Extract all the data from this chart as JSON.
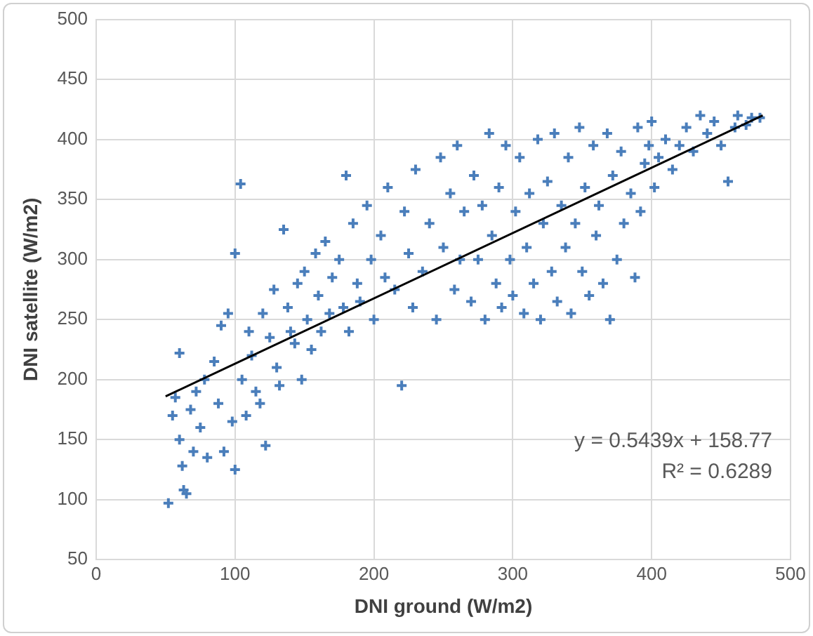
{
  "chart_data": {
    "type": "scatter",
    "xlabel": "DNI ground (W/m2)",
    "ylabel": "DNI satellite (W/m2)",
    "xlim": [
      0,
      500
    ],
    "xticks": [
      0,
      100,
      200,
      300,
      400,
      500
    ],
    "ylim": [
      50,
      500
    ],
    "yticks": [
      50,
      100,
      150,
      200,
      250,
      300,
      350,
      400,
      450,
      500
    ],
    "grid": true,
    "marker": "cross",
    "annotations": [
      "y = 0.5439x + 158.77",
      "R² = 0.6289"
    ],
    "series": [
      {
        "color": "#4a7ebb",
        "x": [
          52,
          55,
          57,
          60,
          62,
          63,
          65,
          60,
          68,
          70,
          72,
          75,
          78,
          80,
          85,
          88,
          90,
          92,
          95,
          98,
          100,
          100,
          104,
          105,
          108,
          110,
          112,
          115,
          118,
          120,
          122,
          125,
          128,
          130,
          132,
          135,
          138,
          140,
          143,
          145,
          148,
          150,
          152,
          155,
          158,
          160,
          162,
          165,
          168,
          170,
          175,
          178,
          180,
          182,
          185,
          188,
          190,
          195,
          198,
          200,
          205,
          208,
          210,
          215,
          220,
          222,
          225,
          228,
          230,
          235,
          240,
          245,
          248,
          250,
          255,
          258,
          260,
          262,
          265,
          270,
          272,
          275,
          278,
          280,
          283,
          285,
          288,
          290,
          292,
          295,
          298,
          300,
          302,
          305,
          308,
          310,
          312,
          315,
          318,
          320,
          322,
          325,
          328,
          330,
          332,
          335,
          338,
          340,
          342,
          345,
          348,
          350,
          352,
          355,
          358,
          360,
          362,
          365,
          368,
          370,
          372,
          375,
          378,
          380,
          385,
          388,
          390,
          392,
          395,
          398,
          400,
          402,
          405,
          410,
          415,
          420,
          425,
          430,
          435,
          440,
          445,
          450,
          455,
          460,
          462,
          468,
          472,
          478
        ],
        "values": [
          97,
          170,
          185,
          150,
          128,
          108,
          105,
          222,
          175,
          140,
          190,
          160,
          200,
          135,
          215,
          180,
          245,
          140,
          255,
          165,
          305,
          125,
          363,
          200,
          170,
          240,
          220,
          190,
          180,
          255,
          145,
          235,
          275,
          210,
          195,
          325,
          260,
          240,
          230,
          280,
          200,
          290,
          250,
          225,
          305,
          270,
          240,
          315,
          255,
          285,
          300,
          260,
          370,
          240,
          330,
          280,
          265,
          345,
          300,
          250,
          320,
          285,
          360,
          275,
          195,
          340,
          305,
          260,
          375,
          290,
          330,
          250,
          385,
          310,
          355,
          275,
          395,
          300,
          340,
          265,
          370,
          300,
          345,
          250,
          405,
          320,
          280,
          360,
          260,
          395,
          300,
          270,
          340,
          385,
          255,
          310,
          355,
          280,
          400,
          250,
          330,
          365,
          290,
          405,
          265,
          345,
          310,
          385,
          255,
          330,
          410,
          290,
          360,
          270,
          395,
          320,
          345,
          280,
          405,
          250,
          370,
          300,
          390,
          330,
          355,
          285,
          410,
          340,
          380,
          395,
          415,
          360,
          385,
          400,
          375,
          395,
          410,
          390,
          420,
          405,
          415,
          395,
          365,
          410,
          420,
          412,
          418,
          418
        ]
      },
      {
        "type": "line",
        "color": "#000000",
        "marker": "none",
        "x": [
          50,
          480
        ],
        "values": [
          186,
          420
        ]
      }
    ]
  }
}
